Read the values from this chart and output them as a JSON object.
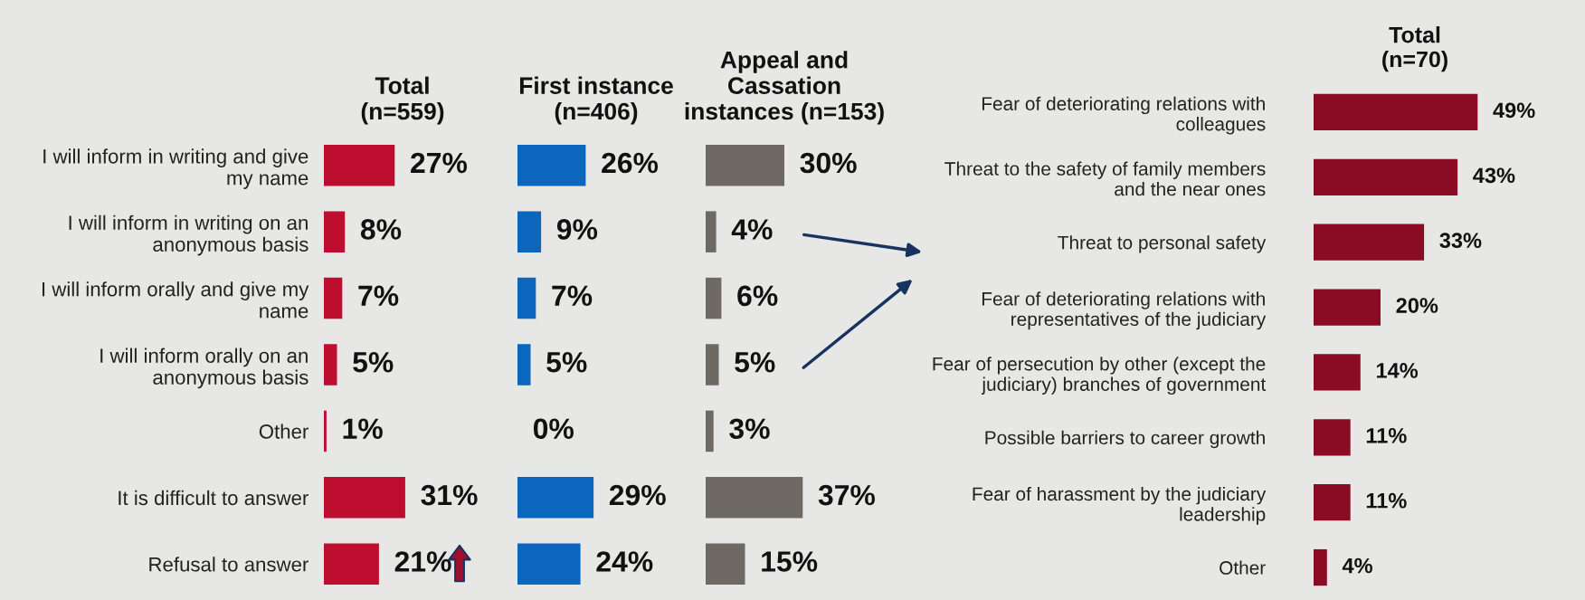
{
  "chart_data": [
    {
      "type": "bar",
      "orientation": "horizontal",
      "title": "Total\n(n=559)",
      "categories": [
        "I will inform in writing and give\nmy name",
        "I will inform in writing on an\nanonymous basis",
        "I will inform orally and give my\nname",
        "I will inform orally on an\nanonymous basis",
        "Other",
        "It is difficult to answer",
        "Refusal to answer"
      ],
      "values": [
        27,
        8,
        7,
        5,
        1,
        31,
        21
      ],
      "value_labels": [
        "27%",
        "8%",
        "7%",
        "5%",
        "1%",
        "31%",
        "21%"
      ],
      "color": "#bd0e30",
      "tick_labels": "y"
    },
    {
      "type": "bar",
      "orientation": "horizontal",
      "title": "First instance\n(n=406)",
      "categories": [
        null,
        null,
        null,
        null,
        null,
        null,
        null
      ],
      "values": [
        26,
        9,
        7,
        5,
        0,
        29,
        24
      ],
      "value_labels": [
        "26%",
        "9%",
        "7%",
        "5%",
        "0%",
        "29%",
        "24%"
      ],
      "color": "#0a67bd",
      "tick_labels": false
    },
    {
      "type": "bar",
      "orientation": "horizontal",
      "title": "Appeal and\nCassation\ninstances (n=153)",
      "categories": [
        null,
        null,
        null,
        null,
        null,
        null,
        null
      ],
      "values": [
        30,
        4,
        6,
        5,
        3,
        37,
        15
      ],
      "value_labels": [
        "30%",
        "4%",
        "6%",
        "5%",
        "3%",
        "37%",
        "15%"
      ],
      "color": "#6e6a63",
      "tick_labels": false
    },
    {
      "type": "bar",
      "orientation": "horizontal",
      "title": "Total\n(n=70)",
      "categories": [
        "Fear of deteriorating relations with\ncolleagues",
        "Threat to the safety of family members\nand the near ones",
        "Threat to personal safety",
        "Fear of deteriorating relations with\nrepresentatives of the judiciary",
        "Fear of persecution by other (except the\njudiciary) branches of government",
        "Possible barriers to career growth",
        "Fear of harassment by the judiciary\nleadership",
        "Other"
      ],
      "values": [
        49,
        43,
        33,
        20,
        14,
        11,
        11,
        4
      ],
      "value_labels": [
        "49%",
        "43%",
        "33%",
        "20%",
        "14%",
        "11%",
        "11%",
        "4%"
      ],
      "color": "#8b0b24",
      "tick_labels": "y"
    }
  ]
}
